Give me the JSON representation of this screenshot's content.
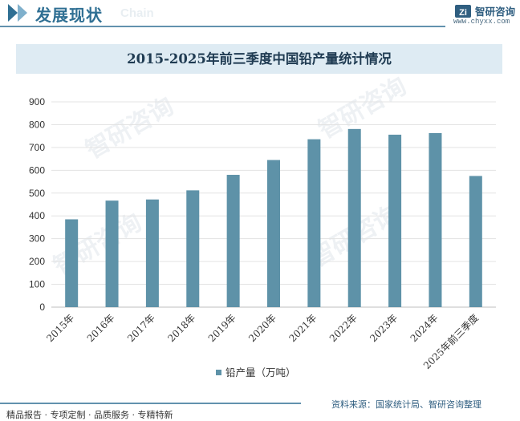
{
  "header": {
    "title": "发展现状",
    "subtitle": "Chain",
    "brand_name": "智研咨询",
    "brand_url": "www.chyxx.com"
  },
  "footer": {
    "left_text": "精品报告 · 专项定制 · 品质服务 · 专精特新",
    "source": "资料来源：国家统计局、智研咨询整理"
  },
  "watermark_text": "智研咨询",
  "colors": {
    "accent": "#2f6f93",
    "bar": "#5e92a8",
    "title_band": "#deebf3"
  },
  "chart_data": {
    "type": "bar",
    "title": "2015-2025年前三季度中国铅产量统计情况",
    "categories": [
      "2015年",
      "2016年",
      "2017年",
      "2018年",
      "2019年",
      "2020年",
      "2021年",
      "2022年",
      "2023年",
      "2024年",
      "2025年前三季度"
    ],
    "series": [
      {
        "name": "铅产量（万吨）",
        "values": [
          385,
          467,
          472,
          512,
          580,
          645,
          736,
          781,
          756,
          763,
          575
        ]
      }
    ],
    "ylim": [
      0,
      900
    ],
    "yticks": [
      0,
      100,
      200,
      300,
      400,
      500,
      600,
      700,
      800,
      900
    ],
    "grid": true,
    "legend_position": "bottom"
  }
}
